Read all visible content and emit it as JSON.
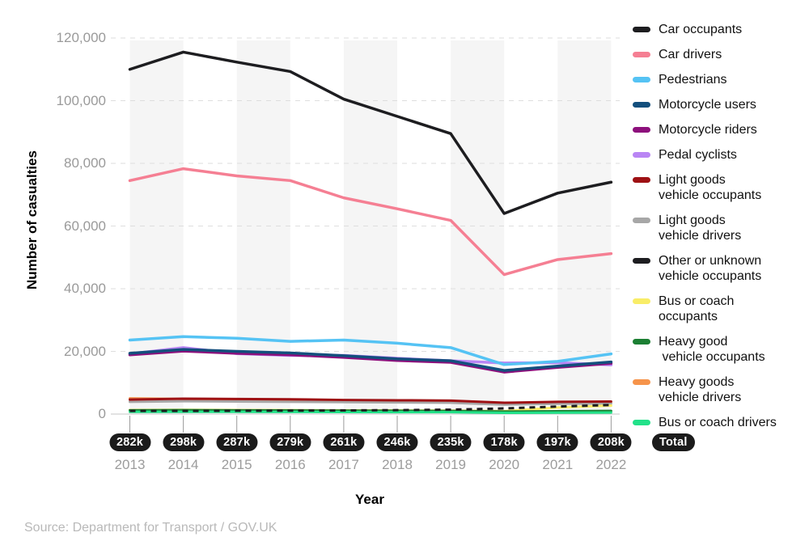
{
  "source_caption": "Source: Department for Transport / GOV.UK",
  "chart_data": {
    "type": "line",
    "x_label": "Year",
    "y_label": "Number of casualties",
    "legend_position": "right",
    "grid": "horizontal-dashed",
    "ylim": [
      0,
      120000
    ],
    "band_color": "#f5f5f5",
    "x_categories": [
      "2013",
      "2014",
      "2015",
      "2016",
      "2017",
      "2018",
      "2019",
      "2020",
      "2021",
      "2022"
    ],
    "totals": [
      "282k",
      "298k",
      "287k",
      "279k",
      "261k",
      "246k",
      "235k",
      "178k",
      "197k",
      "208k"
    ],
    "total_label": "Total",
    "y_ticks": {
      "values": [
        0,
        20000,
        40000,
        60000,
        80000,
        100000,
        120000
      ],
      "labels": [
        "0",
        "20,000",
        "40,000",
        "60,000",
        "80,000",
        "100,000",
        "120,000"
      ]
    },
    "series": [
      {
        "key": "car-occupants",
        "label_lines": [
          "Car occupants"
        ],
        "color": "#1d1d20",
        "dash": false,
        "values": [
          110000,
          115500,
          112300,
          109300,
          100500,
          95000,
          89500,
          64000,
          70500,
          74000
        ]
      },
      {
        "key": "car-drivers",
        "label_lines": [
          "Car drivers"
        ],
        "color": "#f57f93",
        "dash": false,
        "values": [
          74500,
          78300,
          76000,
          74500,
          69000,
          65500,
          61800,
          44500,
          49300,
          51200
        ]
      },
      {
        "key": "pedestrians",
        "label_lines": [
          "Pedestrians"
        ],
        "color": "#55c3f4",
        "dash": false,
        "values": [
          23600,
          24700,
          24200,
          23200,
          23600,
          22600,
          21200,
          15800,
          16800,
          19200
        ]
      },
      {
        "key": "motorcycle-users",
        "label_lines": [
          "Motorcycle users"
        ],
        "color": "#134f7d",
        "dash": false,
        "values": [
          19400,
          20600,
          20000,
          19500,
          18600,
          17600,
          17000,
          13900,
          15300,
          16600
        ]
      },
      {
        "key": "motorcycle-riders",
        "label_lines": [
          "Motorcycle riders"
        ],
        "color": "#8d107c",
        "dash": false,
        "values": [
          18900,
          20100,
          19400,
          18900,
          18100,
          17100,
          16500,
          13400,
          14900,
          16200
        ]
      },
      {
        "key": "pedal-cyclists",
        "label_lines": [
          "Pedal cyclists"
        ],
        "color": "#b985f4",
        "dash": false,
        "values": [
          19200,
          21200,
          19300,
          18700,
          18700,
          17800,
          17000,
          16300,
          16400,
          15700
        ]
      },
      {
        "key": "light-goods-vehicle-occupants",
        "label_lines": [
          "Light goods",
          "vehicle occupants"
        ],
        "color": "#9e1114",
        "dash": false,
        "values": [
          4600,
          4900,
          4800,
          4700,
          4500,
          4400,
          4300,
          3600,
          3900,
          4000
        ]
      },
      {
        "key": "light-goods-vehicle-drivers",
        "label_lines": [
          "Light goods",
          "vehicle drivers"
        ],
        "color": "#a7a7a7",
        "dash": false,
        "values": [
          3900,
          4100,
          4000,
          3900,
          3800,
          3700,
          3600,
          3000,
          3300,
          3400
        ]
      },
      {
        "key": "other-or-unknown-vehicle-occupants",
        "label_lines": [
          "Other or unknown",
          "vehicle occupants"
        ],
        "color": "#1d1d20",
        "dash": true,
        "values": [
          1000,
          1000,
          1050,
          1100,
          1150,
          1250,
          1400,
          1800,
          2400,
          2900
        ]
      },
      {
        "key": "bus-or-coach-occupants",
        "label_lines": [
          "Bus or coach",
          "occupants"
        ],
        "color": "#f9ed67",
        "dash": false,
        "values": [
          1300,
          1350,
          1300,
          1250,
          1200,
          1150,
          1100,
          950,
          2100,
          2700
        ]
      },
      {
        "key": "heavy-good-vehicle-occupants",
        "label_lines": [
          "Heavy good",
          " vehicle occupants"
        ],
        "color": "#1c7f33",
        "dash": false,
        "values": [
          1200,
          1250,
          1200,
          1150,
          1100,
          1050,
          1000,
          800,
          900,
          1000
        ]
      },
      {
        "key": "heavy-goods-vehicle-drivers",
        "label_lines": [
          "Heavy goods",
          "vehicle drivers"
        ],
        "color": "#f6944b",
        "dash": false,
        "values": [
          5000,
          4800,
          4700,
          4600,
          4400,
          4300,
          4200,
          3500,
          3800,
          3900
        ]
      },
      {
        "key": "bus-or-coach-drivers",
        "label_lines": [
          "Bus or coach drivers"
        ],
        "color": "#22e189",
        "dash": false,
        "values": [
          700,
          720,
          700,
          680,
          650,
          620,
          600,
          380,
          450,
          500
        ]
      }
    ]
  }
}
